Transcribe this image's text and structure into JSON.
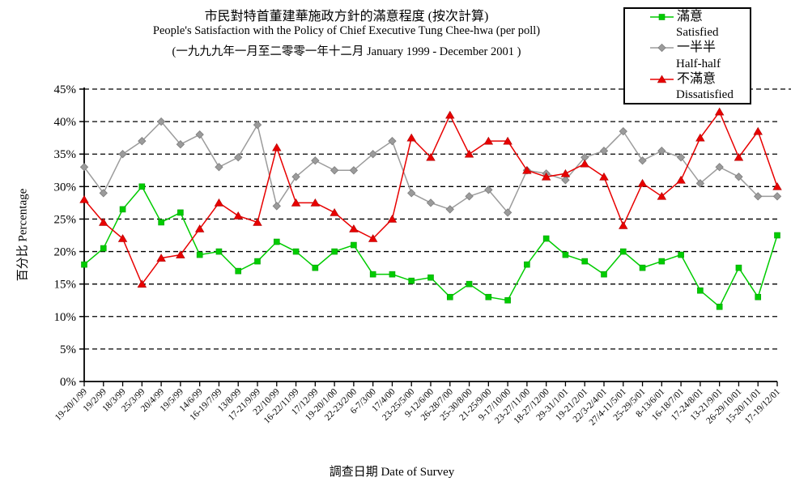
{
  "title": {
    "line1_zh": "市民對特首董建華施政方針的滿意程度 (按次計算)",
    "line2_en": "People's Satisfaction with the Policy of Chief Executive Tung Chee-hwa (per poll)",
    "line3_range": "(一九九九年一月至二零零一年十二月 January 1999 - December 2001 )"
  },
  "legend": {
    "entries": [
      {
        "label_zh": "滿意",
        "label_en": "Satisfied",
        "marker": "square",
        "color": "#00cc00"
      },
      {
        "label_zh": "一半半",
        "label_en": "Half-half",
        "marker": "diamond",
        "color": "#9b9b9b"
      },
      {
        "label_zh": "不滿意",
        "label_en": "Dissatisfied",
        "marker": "triangle",
        "color": "#e80000"
      }
    ]
  },
  "axes": {
    "y_label": "百分比 Percentage",
    "x_label": "調查日期 Date of Survey",
    "y_tick_labels": [
      "0%",
      "5%",
      "10%",
      "15%",
      "20%",
      "25%",
      "30%",
      "35%",
      "40%",
      "45%"
    ]
  },
  "chart_data": {
    "type": "line",
    "title": "市民對特首董建華施政方針的滿意程度 (按次計算) / People's Satisfaction with the Policy of Chief Executive Tung Chee-hwa (per poll)",
    "xlabel": "調查日期 Date of Survey",
    "ylabel": "百分比 Percentage",
    "ylim": [
      0,
      45
    ],
    "y_tick_step": 5,
    "grid": "horizontal-dashed",
    "legend_position": "top-right",
    "categories": [
      "19-20/1/99",
      "19/2/99",
      "18/3/99",
      "25/3/99",
      "20/4/99",
      "19/5/99",
      "14/6/99",
      "16-19/7/99",
      "13/8/99",
      "17-21/9/99",
      "22/10/99",
      "16-22/11/99",
      "17/12/99",
      "19-20/1/00",
      "22-23/2/00",
      "6-7/3/00",
      "17/4/00",
      "23-25/5/00",
      "9-12/6/00",
      "26-28/7/00",
      "25-30/8/00",
      "21-25/9/00",
      "9-17/10/00",
      "23-27/11/00",
      "18-27/12/00",
      "29-31/1/01",
      "19-21/2/01",
      "22/3-2/4/01",
      "27/4-11/5/01",
      "25-29/5/01",
      "8-13/6/01",
      "16-18/7/01",
      "17-24/8/01",
      "13-21/9/01",
      "26-29/10/01",
      "15-20/11/01",
      "17-19/12/01"
    ],
    "series": [
      {
        "name": "滿意 Satisfied",
        "marker": "square",
        "color": "#00cc00",
        "values": [
          18,
          20.5,
          26.5,
          30,
          24.5,
          26,
          19.5,
          20,
          17,
          18.5,
          21.5,
          20,
          17.5,
          20,
          21,
          16.5,
          16.5,
          15.5,
          16,
          13,
          15,
          13,
          12.5,
          18,
          22,
          19.5,
          18.5,
          16.5,
          20,
          17.5,
          18.5,
          19.5,
          14,
          11.5,
          17.5,
          13,
          22.5
        ]
      },
      {
        "name": "一半半 Half-half",
        "marker": "diamond",
        "color": "#9b9b9b",
        "values": [
          33,
          29,
          35,
          37,
          40,
          36.5,
          38,
          33,
          34.5,
          39.5,
          27,
          31.5,
          34,
          32.5,
          32.5,
          35,
          37,
          29,
          27.5,
          26.5,
          28.5,
          29.5,
          26,
          32.5,
          32,
          31,
          34.5,
          35.5,
          38.5,
          34,
          35.5,
          34.5,
          30.5,
          33,
          31.5,
          28.5,
          28.5
        ]
      },
      {
        "name": "不滿意 Dissatisfied",
        "marker": "triangle",
        "color": "#e80000",
        "values": [
          28,
          24.5,
          22,
          15,
          19,
          19.5,
          23.5,
          27.5,
          25.5,
          24.5,
          36,
          27.5,
          27.5,
          26,
          23.5,
          22,
          25,
          37.5,
          34.5,
          41,
          35,
          37,
          37,
          32.5,
          31.5,
          32,
          33.5,
          31.5,
          24,
          30.5,
          28.5,
          31,
          37.5,
          41.5,
          34.5,
          38.5,
          30
        ]
      }
    ]
  }
}
